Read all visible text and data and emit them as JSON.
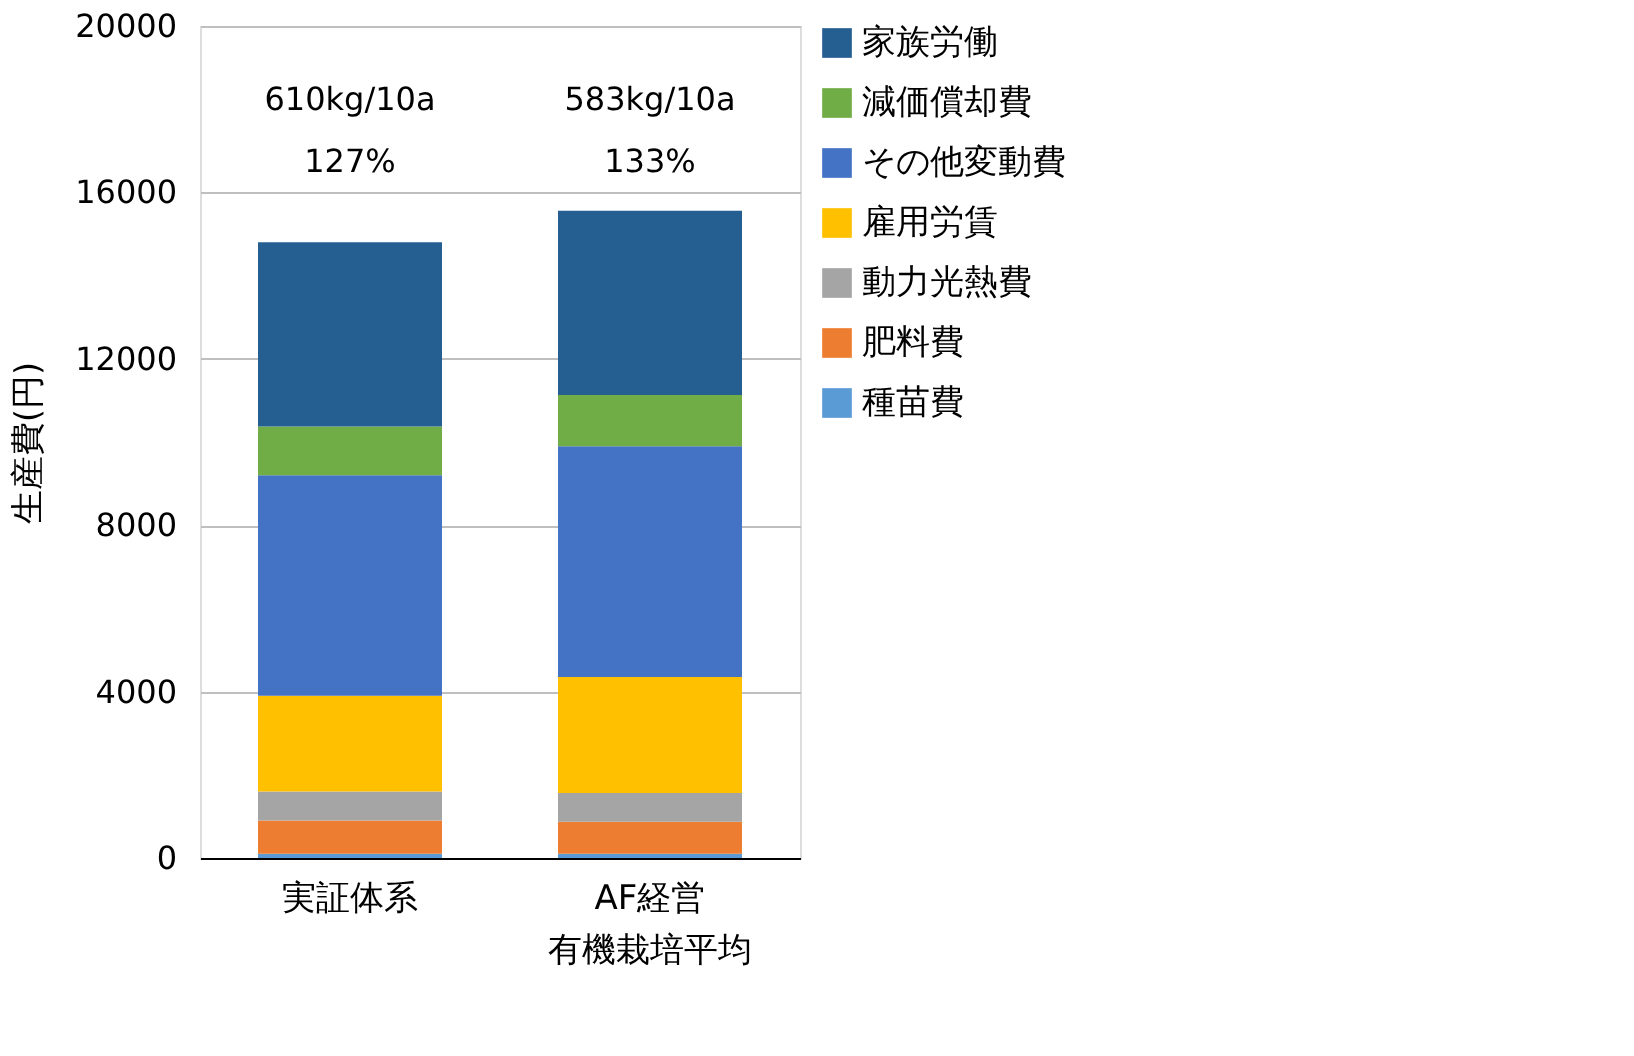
{
  "chart_data": {
    "type": "bar",
    "stacked": true,
    "ylabel": "生産費(円)",
    "categories": [
      "実証体系",
      "AF経営有機栽培平均"
    ],
    "series": [
      {
        "name": "種苗費",
        "color": "#5b9bd5",
        "values": [
          100,
          100
        ]
      },
      {
        "name": "肥料費",
        "color": "#ed7d31",
        "values": [
          800,
          770
        ]
      },
      {
        "name": "動力光熱費",
        "color": "#a5a5a5",
        "values": [
          700,
          690
        ]
      },
      {
        "name": "雇用労賃",
        "color": "#ffc000",
        "values": [
          2300,
          2790
        ]
      },
      {
        "name": "その他変動費",
        "color": "#4472c4",
        "values": [
          5300,
          5550
        ]
      },
      {
        "name": "減価償却費",
        "color": "#70ad47",
        "values": [
          1170,
          1230
        ]
      },
      {
        "name": "家族労働",
        "color": "#255e91",
        "values": [
          4430,
          4430
        ]
      }
    ],
    "ylim": [
      0,
      20000
    ],
    "yticks": [
      0,
      4000,
      8000,
      12000,
      16000,
      20000
    ],
    "grid": "y",
    "legend": "right",
    "annotations": [
      "610kg/10a",
      "127%",
      "583kg/10a",
      "133%"
    ]
  }
}
